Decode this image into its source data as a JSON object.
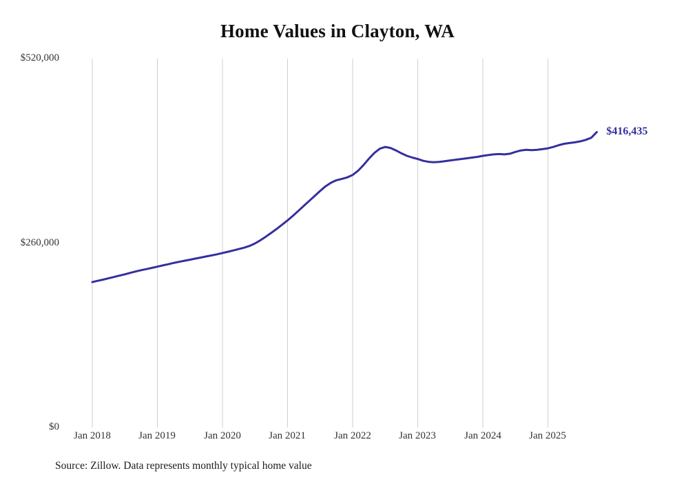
{
  "title": "Home Values in Clayton, WA",
  "end_label": "$416,435",
  "source_note": "Source: Zillow. Data represents monthly typical home value",
  "colors": {
    "line": "#342f9e",
    "label": "#342f9e",
    "grid": "#cfcfcf",
    "title": "#111111",
    "axis_text": "#333333"
  },
  "y_axis": {
    "ticks": [
      "$520,000",
      "$260,000",
      "$0"
    ],
    "min": 0,
    "max": 520000
  },
  "x_axis": {
    "ticks": [
      "Jan 2018",
      "Jan 2019",
      "Jan 2020",
      "Jan 2021",
      "Jan 2022",
      "Jan 2023",
      "Jan 2024",
      "Jan 2025"
    ]
  },
  "chart_data": {
    "type": "line",
    "title": "Home Values in Clayton, WA",
    "xlabel": "",
    "ylabel": "",
    "ylim": [
      0,
      520000
    ],
    "grid": "vertical-yearly",
    "legend": "none",
    "series_name": "Typical home value ($)",
    "x": [
      "2018-01",
      "2018-02",
      "2018-03",
      "2018-04",
      "2018-05",
      "2018-06",
      "2018-07",
      "2018-08",
      "2018-09",
      "2018-10",
      "2018-11",
      "2018-12",
      "2019-01",
      "2019-02",
      "2019-03",
      "2019-04",
      "2019-05",
      "2019-06",
      "2019-07",
      "2019-08",
      "2019-09",
      "2019-10",
      "2019-11",
      "2019-12",
      "2020-01",
      "2020-02",
      "2020-03",
      "2020-04",
      "2020-05",
      "2020-06",
      "2020-07",
      "2020-08",
      "2020-09",
      "2020-10",
      "2020-11",
      "2020-12",
      "2021-01",
      "2021-02",
      "2021-03",
      "2021-04",
      "2021-05",
      "2021-06",
      "2021-07",
      "2021-08",
      "2021-09",
      "2021-10",
      "2021-11",
      "2021-12",
      "2022-01",
      "2022-02",
      "2022-03",
      "2022-04",
      "2022-05",
      "2022-06",
      "2022-07",
      "2022-08",
      "2022-09",
      "2022-10",
      "2022-11",
      "2022-12",
      "2023-01",
      "2023-02",
      "2023-03",
      "2023-04",
      "2023-05",
      "2023-06",
      "2023-07",
      "2023-08",
      "2023-09",
      "2023-10",
      "2023-11",
      "2023-12",
      "2024-01",
      "2024-02",
      "2024-03",
      "2024-04",
      "2024-05",
      "2024-06",
      "2024-07",
      "2024-08",
      "2024-09",
      "2024-10",
      "2024-11",
      "2024-12",
      "2025-01",
      "2025-02",
      "2025-03",
      "2025-04",
      "2025-05",
      "2025-06",
      "2025-07",
      "2025-08",
      "2025-09",
      "2025-10"
    ],
    "values": [
      205000,
      206800,
      208500,
      210300,
      212200,
      214100,
      216000,
      218000,
      220000,
      221800,
      223400,
      225000,
      226800,
      228500,
      230200,
      232000,
      233600,
      235100,
      236600,
      238100,
      239600,
      241100,
      242600,
      244200,
      246000,
      247800,
      249600,
      251500,
      253500,
      256000,
      259500,
      264000,
      269000,
      274500,
      280000,
      286000,
      292000,
      298500,
      305500,
      312500,
      319500,
      326500,
      333500,
      340000,
      345000,
      348500,
      350500,
      352500,
      356000,
      362000,
      370000,
      379000,
      387000,
      393000,
      395500,
      394000,
      390500,
      386500,
      383000,
      380500,
      378500,
      376000,
      374500,
      374000,
      374500,
      375500,
      376500,
      377500,
      378500,
      379500,
      380500,
      381500,
      383000,
      384000,
      385000,
      385500,
      385000,
      386000,
      388500,
      390500,
      391500,
      391000,
      391500,
      392500,
      393500,
      395500,
      398000,
      400000,
      401000,
      402000,
      403500,
      405500,
      408500,
      416435
    ],
    "final_value": 416435,
    "final_value_label": "$416,435"
  }
}
